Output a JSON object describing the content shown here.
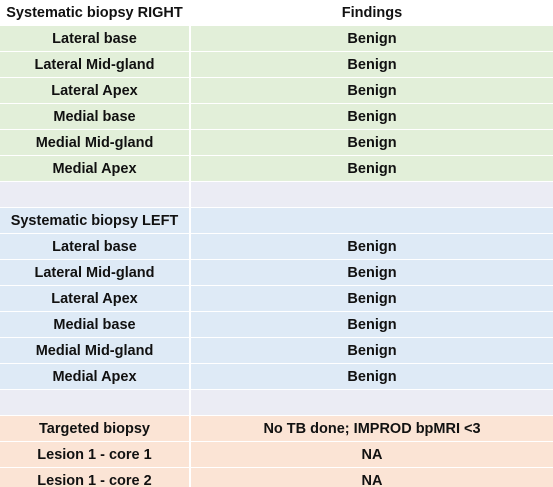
{
  "sections": [
    {
      "title": "Systematic biopsy RIGHT",
      "title_value": "Findings",
      "rows": [
        [
          "Lateral base",
          "Benign"
        ],
        [
          "Lateral Mid-gland",
          "Benign"
        ],
        [
          "Lateral Apex",
          "Benign"
        ],
        [
          "Medial base",
          "Benign"
        ],
        [
          "Medial Mid-gland",
          "Benign"
        ],
        [
          "Medial Apex",
          "Benign"
        ]
      ]
    },
    {
      "title": "Systematic biopsy LEFT",
      "rows": [
        [
          "Lateral base",
          "Benign"
        ],
        [
          "Lateral Mid-gland",
          "Benign"
        ],
        [
          "Lateral Apex",
          "Benign"
        ],
        [
          "Medial base",
          "Benign"
        ],
        [
          "Medial Mid-gland",
          "Benign"
        ],
        [
          "Medial Apex",
          "Benign"
        ]
      ]
    },
    {
      "title": "Targeted biopsy",
      "title_value": "No TB done; IMPROD bpMRI <3",
      "rows": [
        [
          "Lesion 1 - core 1",
          "NA"
        ],
        [
          "Lesion 1 - core 2",
          "NA"
        ]
      ]
    }
  ]
}
